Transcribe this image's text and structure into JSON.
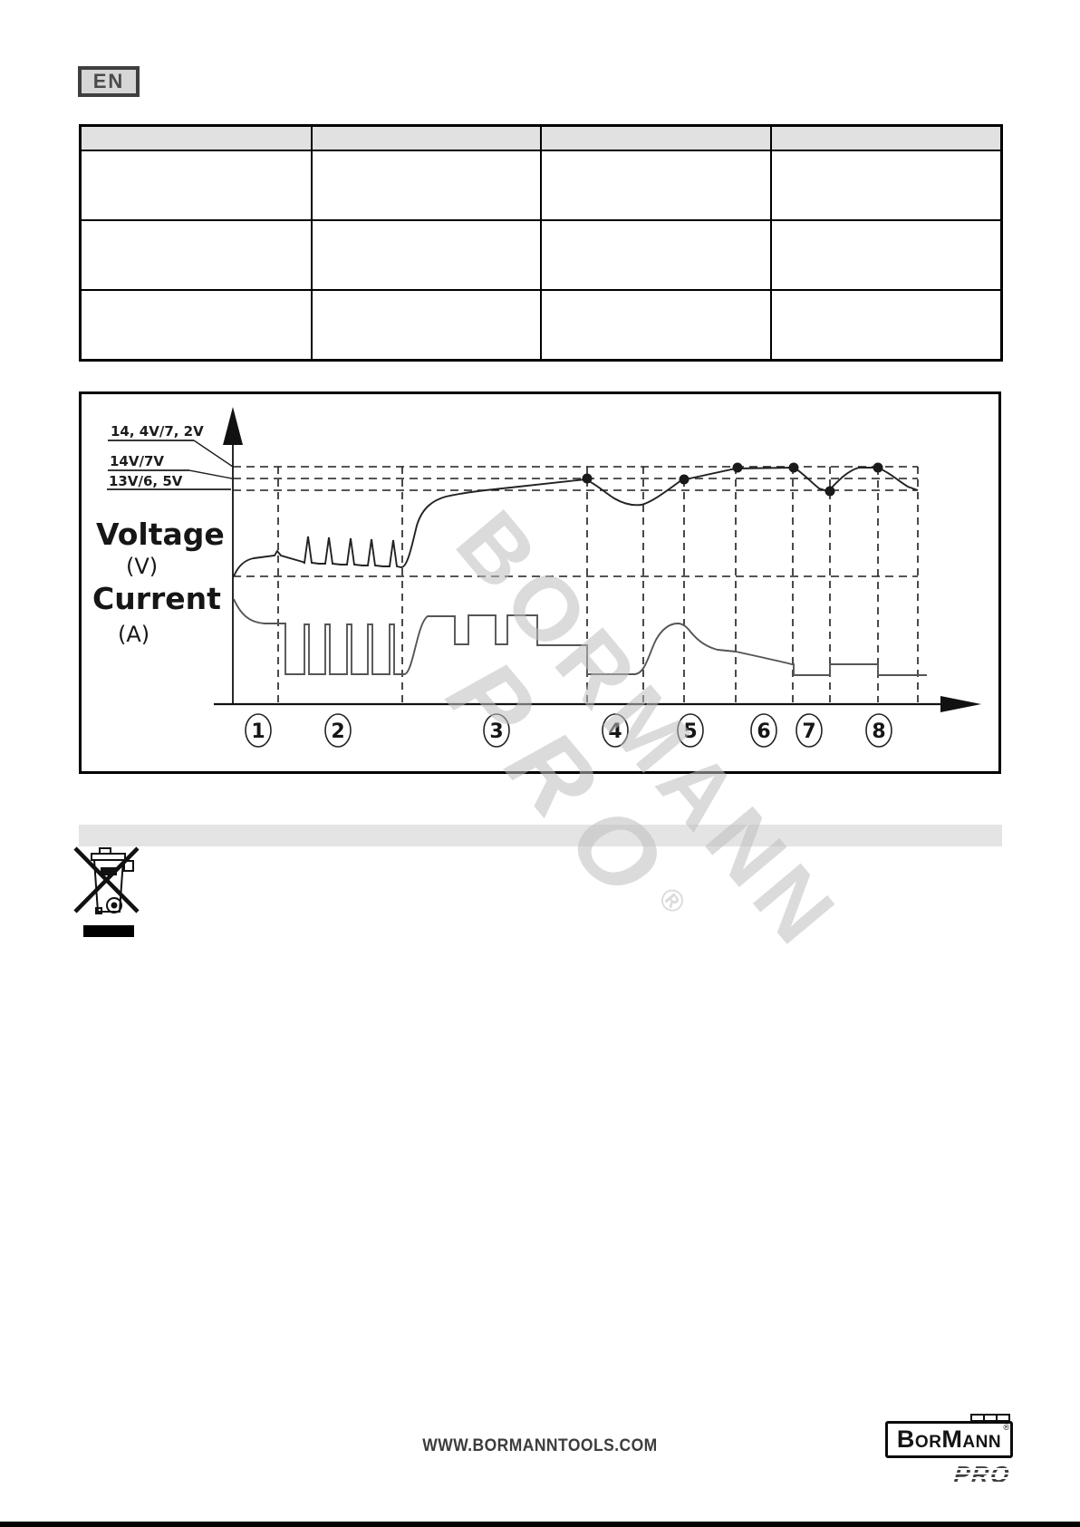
{
  "page": {
    "language_badge": "EN"
  },
  "table": {
    "columns": 4,
    "header_labels": [
      "",
      "",
      "",
      ""
    ],
    "rows": [
      [
        "",
        "",
        "",
        ""
      ],
      [
        "",
        "",
        "",
        ""
      ],
      [
        "",
        "",
        "",
        ""
      ]
    ]
  },
  "chart_data": {
    "type": "line",
    "description": "Battery charger voltage and current profile across 8 charging stages",
    "voltage_reference_labels": [
      "14, 4V/7, 2V",
      "14V/7V",
      "13V/6, 5V"
    ],
    "voltage_axis_label": "Voltage",
    "voltage_axis_unit": "(V)",
    "current_axis_label": "Current",
    "current_axis_unit": "(A)",
    "stages": [
      "1",
      "2",
      "3",
      "4",
      "5",
      "6",
      "7",
      "8"
    ],
    "series": [
      {
        "name": "Voltage (V)",
        "reference_levels_V": [
          14.4,
          14.0,
          13.0
        ],
        "by_stage": [
          {
            "stage": 1,
            "shape": "rises from ~10.1V and levels near 10.8V"
          },
          {
            "stage": 2,
            "shape": "base ~10.6V with 5 pulse spikes to ~11.4V"
          },
          {
            "stage": 3,
            "shape": "steep rise then gradual climb to 14V (dot at 14V)"
          },
          {
            "stage": 4,
            "shape": "dips to ~12.5V then recovers to 14V (dot at 14V)"
          },
          {
            "stage": 5,
            "shape": "rises to 14.4V (dot at 14.4V)"
          },
          {
            "stage": 6,
            "shape": "holds flat at 14.4V (dot at 14.4V)"
          },
          {
            "stage": 7,
            "shape": "falls to 13V (dot at 13V) then rises back to 14.4V"
          },
          {
            "stage": 8,
            "shape": "holds 14.4V (dot) then decays to 13V"
          }
        ]
      },
      {
        "name": "Current (A)",
        "by_stage": [
          {
            "stage": 1,
            "shape": "starts at maximum (1.0 rel) and settles to 0.68 rel"
          },
          {
            "stage": 2,
            "shape": "near zero with 5 narrow pulses to 0.67 rel"
          },
          {
            "stage": 3,
            "shape": "square wave: high 0.79 rel with dips to 0.40 rel, ends at 0.40 rel"
          },
          {
            "stage": 4,
            "shape": "near zero flat"
          },
          {
            "stage": 5,
            "shape": "bump peaking at 0.67 rel then declining"
          },
          {
            "stage": 6,
            "shape": "slow decline to 0.14 rel"
          },
          {
            "stage": 7,
            "shape": "low flat near zero"
          },
          {
            "stage": 8,
            "shape": "small step up to 0.14 rel then back near zero"
          }
        ]
      }
    ],
    "legend_position": "none",
    "grid": "dashed reference lines only"
  },
  "watermark": {
    "line1": "BORMANN",
    "line2": "PRO",
    "registered": "®"
  },
  "footer": {
    "website": "WWW.BORMANNTOOLS.COM",
    "logo_text": "BorMann",
    "logo_registered": "®",
    "logo_sub": "PRO"
  }
}
